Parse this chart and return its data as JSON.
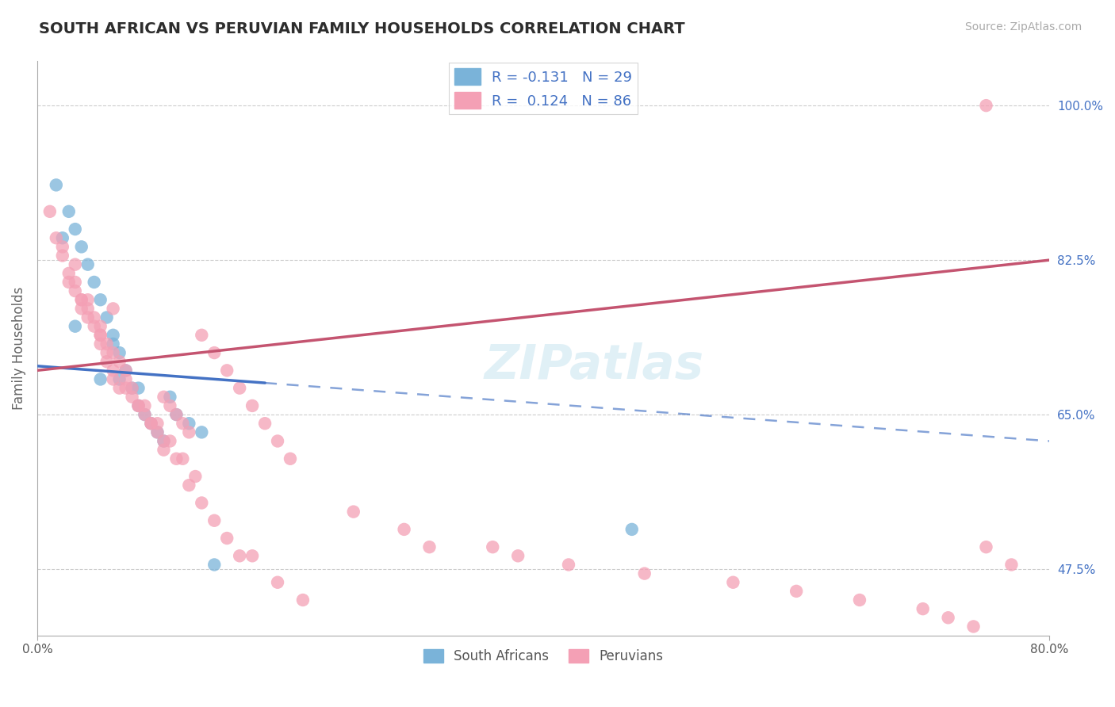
{
  "title": "SOUTH AFRICAN VS PERUVIAN FAMILY HOUSEHOLDS CORRELATION CHART",
  "source": "Source: ZipAtlas.com",
  "ylabel": "Family Households",
  "blue_color": "#7ab3d9",
  "pink_color": "#f4a0b5",
  "blue_line_color": "#4472c4",
  "pink_line_color": "#c45470",
  "watermark": "ZIPatlas",
  "xmin": 0.0,
  "xmax": 80.0,
  "ymin": 40.0,
  "ymax": 105.0,
  "yticks": [
    47.5,
    65.0,
    82.5,
    100.0
  ],
  "title_color": "#2d2d2d",
  "axis_label_color": "#4472c4",
  "blue_n": 29,
  "pink_n": 86,
  "blue_line_x0": 0.0,
  "blue_line_y0": 70.5,
  "blue_line_x1": 80.0,
  "blue_line_y1": 62.0,
  "blue_solid_xmax": 18.0,
  "pink_line_x0": 0.0,
  "pink_line_y0": 70.0,
  "pink_line_x1": 80.0,
  "pink_line_y1": 82.5,
  "blue_scatter_x": [
    1.5,
    2.5,
    3.0,
    3.5,
    4.0,
    4.5,
    5.0,
    5.5,
    6.0,
    6.5,
    7.0,
    7.5,
    8.0,
    8.5,
    9.0,
    9.5,
    10.0,
    10.5,
    11.0,
    12.0,
    13.0,
    14.0,
    2.0,
    3.0,
    5.0,
    6.5,
    8.0,
    6.0,
    47.0
  ],
  "blue_scatter_y": [
    91,
    88,
    86,
    84,
    82,
    80,
    78,
    76,
    74,
    72,
    70,
    68,
    66,
    65,
    64,
    63,
    62,
    67,
    65,
    64,
    63,
    48,
    85,
    75,
    69,
    69,
    68,
    73,
    52
  ],
  "pink_scatter_x": [
    1.0,
    1.5,
    2.0,
    2.5,
    3.0,
    3.0,
    3.5,
    4.0,
    4.0,
    4.5,
    5.0,
    5.0,
    5.5,
    5.5,
    6.0,
    6.0,
    6.5,
    7.0,
    7.0,
    7.5,
    8.0,
    8.5,
    9.0,
    9.5,
    10.0,
    10.0,
    10.5,
    11.0,
    11.5,
    12.0,
    13.0,
    14.0,
    15.0,
    16.0,
    17.0,
    18.0,
    19.0,
    20.0,
    2.5,
    3.5,
    4.5,
    5.5,
    6.5,
    7.5,
    8.5,
    9.5,
    10.5,
    11.5,
    12.5,
    2.0,
    3.0,
    4.0,
    5.0,
    6.0,
    7.0,
    8.0,
    9.0,
    10.0,
    11.0,
    12.0,
    13.0,
    14.0,
    15.0,
    16.0,
    3.5,
    5.0,
    6.0,
    17.0,
    19.0,
    21.0,
    25.0,
    29.0,
    31.0,
    36.0,
    38.0,
    42.0,
    48.0,
    55.0,
    60.0,
    65.0,
    70.0,
    72.0,
    74.0,
    75.0,
    77.0,
    75.0
  ],
  "pink_scatter_y": [
    88,
    85,
    83,
    81,
    80,
    79,
    78,
    77,
    76,
    75,
    74,
    73,
    72,
    71,
    70,
    69,
    68,
    70,
    68,
    67,
    66,
    65,
    64,
    63,
    62,
    67,
    66,
    65,
    64,
    63,
    74,
    72,
    70,
    68,
    66,
    64,
    62,
    60,
    80,
    78,
    76,
    73,
    71,
    68,
    66,
    64,
    62,
    60,
    58,
    84,
    82,
    78,
    75,
    72,
    69,
    66,
    64,
    61,
    60,
    57,
    55,
    53,
    51,
    49,
    77,
    74,
    77,
    49,
    46,
    44,
    54,
    52,
    50,
    50,
    49,
    48,
    47,
    46,
    45,
    44,
    43,
    42,
    41,
    100,
    48,
    50
  ]
}
